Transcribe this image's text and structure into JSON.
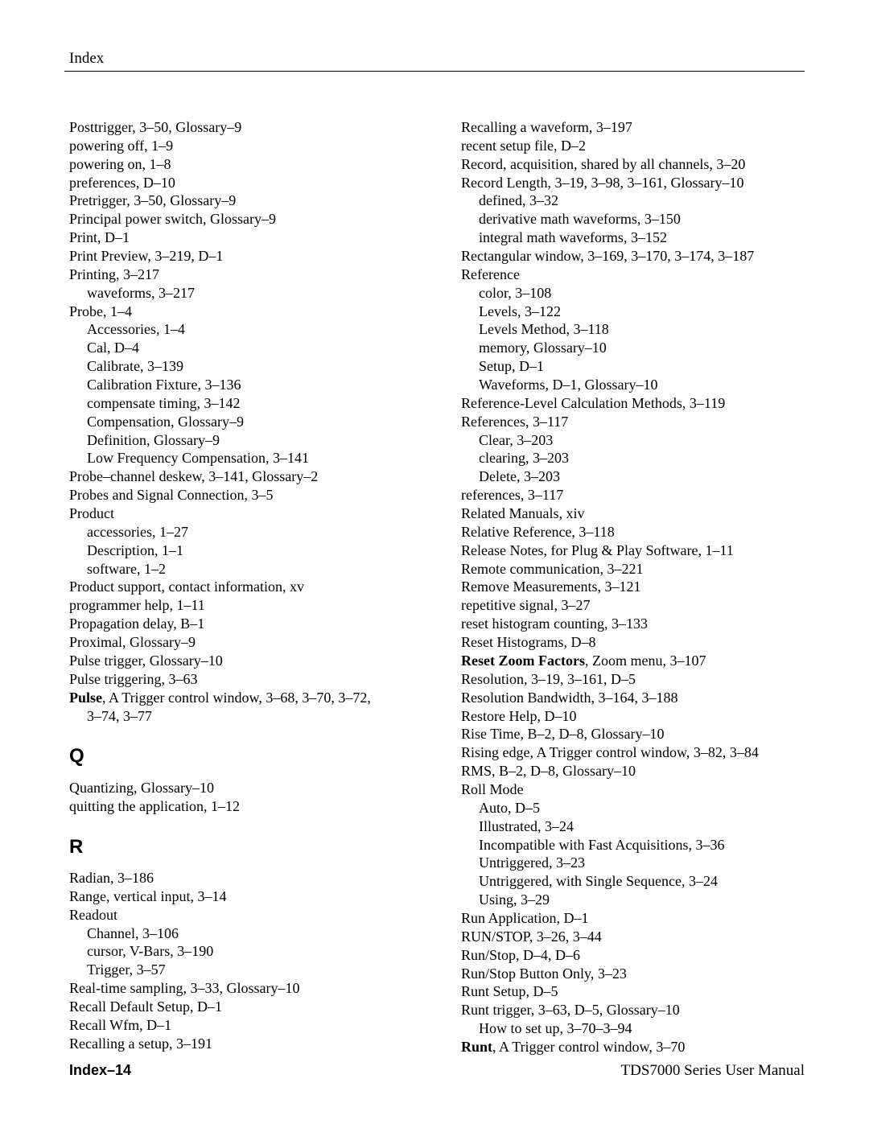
{
  "header": "Index",
  "footer": {
    "left": "Index–14",
    "right": "TDS7000 Series User Manual"
  },
  "letters": {
    "Q": "Q",
    "R": "R"
  },
  "col1": {
    "p": [
      {
        "t": "Posttrigger, 3–50, Glossary–9"
      },
      {
        "t": "powering off, 1–9"
      },
      {
        "t": "powering on, 1–8"
      },
      {
        "t": "preferences, D–10"
      },
      {
        "t": "Pretrigger, 3–50, Glossary–9"
      },
      {
        "t": "Principal power switch, Glossary–9"
      },
      {
        "t": "Print, D–1"
      },
      {
        "t": "Print Preview, 3–219, D–1"
      },
      {
        "t": "Printing, 3–217"
      },
      {
        "t": "waveforms, 3–217",
        "i": 1
      },
      {
        "t": "Probe, 1–4"
      },
      {
        "t": "Accessories, 1–4",
        "i": 1
      },
      {
        "t": "Cal, D–4",
        "i": 1
      },
      {
        "t": "Calibrate, 3–139",
        "i": 1
      },
      {
        "t": "Calibration Fixture, 3–136",
        "i": 1
      },
      {
        "t": "compensate timing, 3–142",
        "i": 1
      },
      {
        "t": "Compensation, Glossary–9",
        "i": 1
      },
      {
        "t": "Definition, Glossary–9",
        "i": 1
      },
      {
        "t": "Low Frequency Compensation, 3–141",
        "i": 1
      },
      {
        "t": "Probe–channel deskew, 3–141, Glossary–2"
      },
      {
        "t": "Probes and Signal Connection, 3–5"
      },
      {
        "t": "Product"
      },
      {
        "t": "accessories, 1–27",
        "i": 1
      },
      {
        "t": "Description, 1–1",
        "i": 1
      },
      {
        "t": "software, 1–2",
        "i": 1
      },
      {
        "t": "Product support, contact information, xv"
      },
      {
        "t": "programmer help, 1–11"
      },
      {
        "t": "Propagation delay, B–1"
      },
      {
        "t": "Proximal, Glossary–9"
      },
      {
        "t": "Pulse trigger, Glossary–10"
      },
      {
        "t": "Pulse triggering, 3–63"
      },
      {
        "b": "Pulse",
        "t": ", A Trigger control window, 3–68, 3–70, 3–72,"
      },
      {
        "t": "3–74, 3–77",
        "i": 1
      }
    ],
    "q": [
      {
        "t": "Quantizing, Glossary–10"
      },
      {
        "t": "quitting the application, 1–12"
      }
    ],
    "r": [
      {
        "t": "Radian, 3–186"
      },
      {
        "t": "Range, vertical input, 3–14"
      },
      {
        "t": "Readout"
      },
      {
        "t": "Channel, 3–106",
        "i": 1
      },
      {
        "t": "cursor, V-Bars, 3–190",
        "i": 1
      },
      {
        "t": "Trigger, 3–57",
        "i": 1
      },
      {
        "t": "Real-time sampling, 3–33, Glossary–10"
      },
      {
        "t": "Recall Default Setup, D–1"
      },
      {
        "t": "Recall Wfm, D–1"
      },
      {
        "t": "Recalling a setup, 3–191"
      }
    ]
  },
  "col2": {
    "r": [
      {
        "t": "Recalling a waveform, 3–197"
      },
      {
        "t": "recent setup file, D–2"
      },
      {
        "t": "Record, acquisition, shared by all channels, 3–20"
      },
      {
        "t": "Record Length, 3–19, 3–98, 3–161, Glossary–10"
      },
      {
        "t": "defined, 3–32",
        "i": 1
      },
      {
        "t": "derivative math waveforms, 3–150",
        "i": 1
      },
      {
        "t": "integral math waveforms, 3–152",
        "i": 1
      },
      {
        "t": "Rectangular window, 3–169, 3–170, 3–174, 3–187"
      },
      {
        "t": "Reference"
      },
      {
        "t": "color, 3–108",
        "i": 1
      },
      {
        "t": "Levels, 3–122",
        "i": 1
      },
      {
        "t": "Levels Method, 3–118",
        "i": 1
      },
      {
        "t": "memory, Glossary–10",
        "i": 1
      },
      {
        "t": "Setup, D–1",
        "i": 1
      },
      {
        "t": "Waveforms, D–1, Glossary–10",
        "i": 1
      },
      {
        "t": "Reference-Level Calculation Methods, 3–119"
      },
      {
        "t": "References, 3–117"
      },
      {
        "t": "Clear, 3–203",
        "i": 1
      },
      {
        "t": "clearing, 3–203",
        "i": 1
      },
      {
        "t": "Delete, 3–203",
        "i": 1
      },
      {
        "t": "references, 3–117"
      },
      {
        "t": "Related Manuals, xiv"
      },
      {
        "t": "Relative Reference, 3–118"
      },
      {
        "t": "Release Notes, for Plug & Play Software, 1–11"
      },
      {
        "t": "Remote communication, 3–221"
      },
      {
        "t": "Remove Measurements, 3–121"
      },
      {
        "t": "repetitive signal, 3–27"
      },
      {
        "t": "reset histogram counting, 3–133"
      },
      {
        "t": "Reset Histograms, D–8"
      },
      {
        "b": "Reset Zoom Factors",
        "t": ", Zoom menu, 3–107"
      },
      {
        "t": "Resolution, 3–19, 3–161, D–5"
      },
      {
        "t": "Resolution Bandwidth, 3–164, 3–188"
      },
      {
        "t": "Restore Help, D–10"
      },
      {
        "t": "Rise Time, B–2, D–8, Glossary–10"
      },
      {
        "t": "Rising edge, A Trigger control window, 3–82, 3–84"
      },
      {
        "t": "RMS, B–2, D–8, Glossary–10"
      },
      {
        "t": "Roll Mode"
      },
      {
        "t": "Auto, D–5",
        "i": 1
      },
      {
        "t": "Illustrated, 3–24",
        "i": 1
      },
      {
        "t": "Incompatible with Fast Acquisitions, 3–36",
        "i": 1
      },
      {
        "t": "Untriggered, 3–23",
        "i": 1
      },
      {
        "t": "Untriggered, with Single Sequence, 3–24",
        "i": 1
      },
      {
        "t": "Using, 3–29",
        "i": 1
      },
      {
        "t": "Run Application, D–1"
      },
      {
        "t": "RUN/STOP, 3–26, 3–44"
      },
      {
        "t": "Run/Stop, D–4, D–6"
      },
      {
        "t": "Run/Stop Button Only, 3–23"
      },
      {
        "t": "Runt Setup, D–5"
      },
      {
        "t": "Runt trigger, 3–63, D–5, Glossary–10"
      },
      {
        "t": "How to set up, 3–70–3–94",
        "i": 1
      },
      {
        "b": "Runt",
        "t": ", A Trigger control window, 3–70"
      }
    ]
  }
}
